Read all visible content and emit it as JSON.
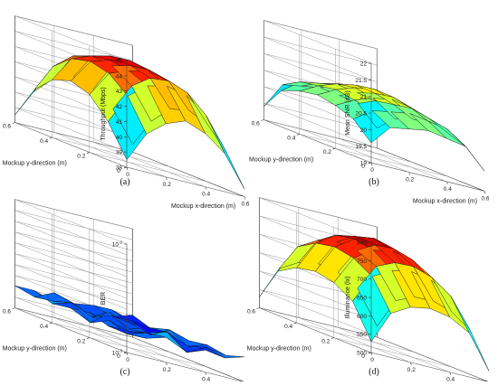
{
  "chart_data": [
    {
      "type": "surface3d",
      "caption": "(a)",
      "zlabel": "Throughput (Mbps)",
      "xlabel": "Mockup x-direction (m)",
      "ylabel": "Mockup y-direction (m)",
      "zlim": [
        38,
        45
      ],
      "zticks": [
        "38",
        "39",
        "40",
        "41",
        "42",
        "43",
        "44",
        "45"
      ],
      "xticks": [
        "0",
        "0.2",
        "0.4",
        "0.6"
      ],
      "yticks": [
        "0",
        "0.2",
        "0.4",
        "0.6"
      ],
      "x": [
        0,
        0.1,
        0.2,
        0.3,
        0.4,
        0.5,
        0.6
      ],
      "y": [
        0,
        0.1,
        0.2,
        0.3,
        0.4,
        0.5,
        0.6
      ],
      "z": [
        [
          38.5,
          40.5,
          41.8,
          42.2,
          41.8,
          40.5,
          38.5
        ],
        [
          40.5,
          42.5,
          43.5,
          43.8,
          43.5,
          42.5,
          40.5
        ],
        [
          41.5,
          43.5,
          44.0,
          44.2,
          44.0,
          43.5,
          41.5
        ],
        [
          42.0,
          43.8,
          44.3,
          44.5,
          44.3,
          43.8,
          42.0
        ],
        [
          41.5,
          43.5,
          44.0,
          44.2,
          44.0,
          43.5,
          41.5
        ],
        [
          40.5,
          42.5,
          43.5,
          43.8,
          43.5,
          42.5,
          40.5
        ],
        [
          38.5,
          40.5,
          41.8,
          42.2,
          41.8,
          40.5,
          38.5
        ]
      ]
    },
    {
      "type": "surface3d",
      "caption": "(b)",
      "zlabel": "Mean SNR (dB)",
      "xlabel": "Mockup x-direction (m)",
      "ylabel": "Mockup y-direction (m)",
      "zlim": [
        19,
        22
      ],
      "zticks": [
        "19",
        "19.5",
        "20",
        "20.5",
        "21",
        "21.5",
        "22"
      ],
      "xticks": [
        "0",
        "0.2",
        "0.4",
        "0.6"
      ],
      "yticks": [
        "0",
        "0.2",
        "0.4",
        "0.6"
      ],
      "x": [
        0,
        0.1,
        0.2,
        0.3,
        0.4,
        0.5,
        0.6
      ],
      "y": [
        0,
        0.1,
        0.2,
        0.3,
        0.4,
        0.5,
        0.6
      ],
      "z": [
        [
          19.6,
          20.1,
          20.3,
          20.4,
          20.3,
          20.1,
          19.4
        ],
        [
          20.2,
          20.5,
          20.6,
          20.7,
          20.6,
          20.5,
          20.2
        ],
        [
          20.3,
          20.6,
          20.8,
          20.9,
          20.8,
          20.6,
          20.3
        ],
        [
          20.4,
          20.7,
          20.9,
          21.0,
          20.9,
          20.7,
          20.4
        ],
        [
          20.3,
          20.6,
          20.8,
          20.9,
          20.8,
          20.6,
          20.3
        ],
        [
          20.2,
          20.5,
          20.6,
          20.7,
          20.6,
          20.5,
          20.2
        ],
        [
          19.6,
          20.1,
          20.3,
          20.4,
          20.3,
          20.1,
          19.6
        ]
      ]
    },
    {
      "type": "surface3d",
      "caption": "(c)",
      "zlabel": "BER",
      "zscale": "log",
      "xlabel": "Mockup x-direction (m)",
      "ylabel": "Mockup y-direction (m)",
      "zlim": [
        0.001,
        0.01
      ],
      "zticks": [
        "10",
        "10"
      ],
      "zticks_exp": [
        "-3",
        "-2"
      ],
      "xticks": [
        "0",
        "0.2",
        "0.4",
        "0.6"
      ],
      "yticks": [
        "0",
        "0.2",
        "0.4",
        "0.6"
      ],
      "x": [
        0,
        0.1,
        0.2,
        0.3,
        0.4,
        0.5,
        0.6
      ],
      "y": [
        0,
        0.1,
        0.2,
        0.3,
        0.4,
        0.5,
        0.6
      ],
      "z": [
        [
          0.0016,
          0.0015,
          0.0017,
          0.0016,
          0.0015,
          0.0017,
          0.0016
        ],
        [
          0.0015,
          0.0014,
          0.0016,
          0.0013,
          0.0017,
          0.0015,
          0.0014
        ],
        [
          0.0017,
          0.0016,
          0.0014,
          0.0018,
          0.0014,
          0.0016,
          0.0017
        ],
        [
          0.0014,
          0.0018,
          0.0015,
          0.0014,
          0.0016,
          0.0013,
          0.0015
        ],
        [
          0.0016,
          0.0013,
          0.0017,
          0.0016,
          0.0015,
          0.0017,
          0.0016
        ],
        [
          0.0015,
          0.0016,
          0.0014,
          0.0017,
          0.0013,
          0.0015,
          0.0014
        ],
        [
          0.0017,
          0.0015,
          0.0016,
          0.0015,
          0.0016,
          0.0014,
          0.0016
        ]
      ]
    },
    {
      "type": "surface3d",
      "caption": "(d)",
      "zlabel": "Illuminance (lx)",
      "xlabel": "Mockup x-direction (m)",
      "ylabel": "Mockup y-direction (m)",
      "zlim": [
        500,
        800
      ],
      "zticks": [
        "500",
        "550",
        "600",
        "650",
        "700",
        "750",
        "800"
      ],
      "xticks": [
        "0",
        "0.2",
        "0.4",
        "0.6"
      ],
      "yticks": [
        "0",
        "0.2",
        "0.4",
        "0.6"
      ],
      "x": [
        0,
        0.1,
        0.2,
        0.3,
        0.4,
        0.5,
        0.6
      ],
      "y": [
        0,
        0.1,
        0.2,
        0.3,
        0.4,
        0.5,
        0.6
      ],
      "z": [
        [
          530,
          620,
          650,
          660,
          650,
          620,
          530
        ],
        [
          620,
          700,
          730,
          740,
          730,
          700,
          620
        ],
        [
          650,
          730,
          765,
          775,
          765,
          730,
          650
        ],
        [
          660,
          740,
          775,
          790,
          775,
          740,
          660
        ],
        [
          650,
          730,
          765,
          775,
          765,
          730,
          650
        ],
        [
          620,
          700,
          730,
          740,
          730,
          700,
          620
        ],
        [
          530,
          620,
          650,
          660,
          650,
          620,
          530
        ]
      ]
    }
  ]
}
